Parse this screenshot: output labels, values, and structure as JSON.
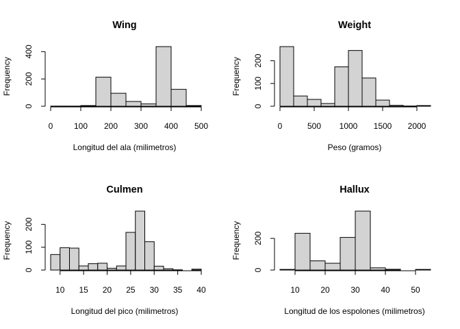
{
  "chart_data": [
    {
      "type": "bar",
      "title": "Wing",
      "xlabel": "Longitud del ala (milimetros)",
      "ylabel": "Frequency",
      "bin_edges": [
        0,
        50,
        100,
        150,
        200,
        250,
        300,
        350,
        400,
        450,
        500
      ],
      "values": [
        1,
        1,
        5,
        213,
        95,
        35,
        17,
        437,
        124,
        5
      ],
      "xticks": [
        0,
        100,
        200,
        300,
        400,
        500
      ],
      "yticks": [
        0,
        200,
        400
      ],
      "xlim": [
        0,
        500
      ],
      "ylim": [
        0,
        437
      ],
      "bar_color": "#d3d3d3"
    },
    {
      "type": "bar",
      "title": "Weight",
      "xlabel": "Peso (gramos)",
      "ylabel": "Frequency",
      "bin_edges": [
        0,
        200,
        400,
        600,
        800,
        1000,
        1200,
        1400,
        1600,
        1800,
        2000,
        2200
      ],
      "values": [
        262,
        45,
        30,
        12,
        173,
        245,
        124,
        27,
        4,
        1,
        3
      ],
      "xticks": [
        0,
        500,
        1000,
        1500,
        2000
      ],
      "yticks": [
        0,
        100,
        200
      ],
      "xlim": [
        0,
        2200
      ],
      "ylim": [
        0,
        262
      ],
      "bar_color": "#d3d3d3"
    },
    {
      "type": "bar",
      "title": "Culmen",
      "xlabel": "Longitud del pico (milimetros)",
      "ylabel": "Frequency",
      "bin_edges": [
        8,
        10,
        12,
        14,
        16,
        18,
        20,
        22,
        24,
        26,
        28,
        30,
        32,
        34,
        36,
        38,
        40
      ],
      "values": [
        68,
        98,
        96,
        18,
        28,
        30,
        8,
        18,
        165,
        258,
        124,
        17,
        6,
        1,
        0,
        4
      ],
      "xticks": [
        10,
        15,
        20,
        25,
        30,
        35,
        40
      ],
      "yticks": [
        0,
        100,
        200
      ],
      "xlim": [
        8,
        40
      ],
      "ylim": [
        0,
        258
      ],
      "bar_color": "#d3d3d3"
    },
    {
      "type": "bar",
      "title": "Hallux",
      "xlabel": "Longitud de los espolones (milimetros)",
      "ylabel": "Frequency",
      "bin_edges": [
        5,
        10,
        15,
        20,
        25,
        30,
        35,
        40,
        45,
        50,
        55
      ],
      "values": [
        4,
        232,
        58,
        43,
        206,
        372,
        14,
        5,
        0,
        4
      ],
      "xticks": [
        10,
        20,
        30,
        40,
        50
      ],
      "yticks": [
        0,
        200
      ],
      "xlim": [
        5,
        55
      ],
      "ylim": [
        0,
        372
      ],
      "bar_color": "#d3d3d3"
    }
  ]
}
